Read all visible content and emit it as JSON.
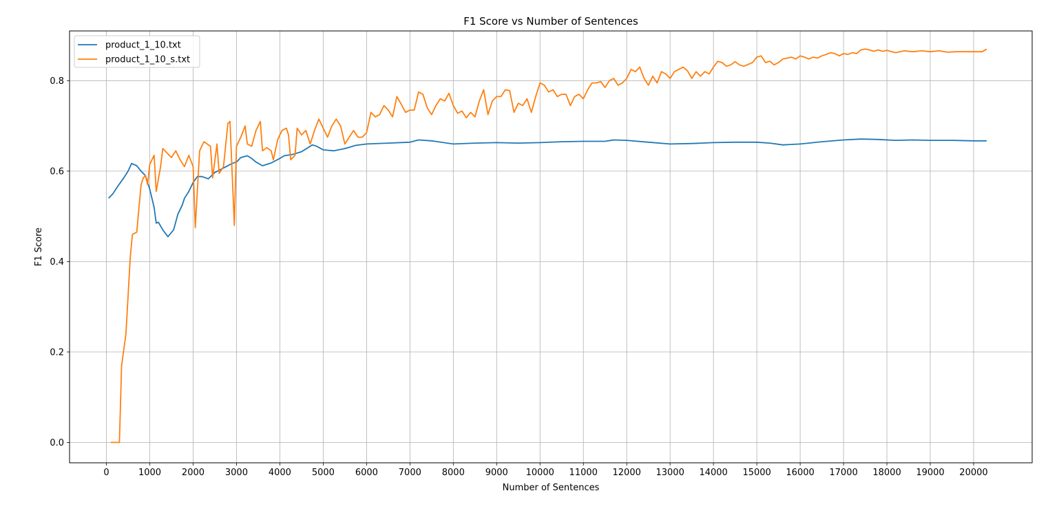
{
  "chart_data": {
    "type": "line",
    "title": "F1 Score vs Number of Sentences",
    "xlabel": "Number of Sentences",
    "ylabel": "F1 Score",
    "xlim": [
      -850,
      21350
    ],
    "ylim": [
      -0.045,
      0.91
    ],
    "xticks": [
      0,
      1000,
      2000,
      3000,
      4000,
      5000,
      6000,
      7000,
      8000,
      9000,
      10000,
      11000,
      12000,
      13000,
      14000,
      15000,
      16000,
      17000,
      18000,
      19000,
      20000
    ],
    "yticks": [
      0.0,
      0.2,
      0.4,
      0.6,
      0.8
    ],
    "ytick_labels": [
      "0.0",
      "0.2",
      "0.4",
      "0.6",
      "0.8"
    ],
    "grid": true,
    "legend": "top-left",
    "series": [
      {
        "name": "product_1_10.txt",
        "color": "#1f77b4",
        "points": [
          [
            50,
            0.54
          ],
          [
            150,
            0.55
          ],
          [
            250,
            0.565
          ],
          [
            400,
            0.585
          ],
          [
            500,
            0.6
          ],
          [
            580,
            0.617
          ],
          [
            700,
            0.612
          ],
          [
            800,
            0.6
          ],
          [
            900,
            0.59
          ],
          [
            1000,
            0.56
          ],
          [
            1100,
            0.52
          ],
          [
            1150,
            0.485
          ],
          [
            1200,
            0.487
          ],
          [
            1300,
            0.47
          ],
          [
            1420,
            0.455
          ],
          [
            1550,
            0.47
          ],
          [
            1650,
            0.505
          ],
          [
            1750,
            0.525
          ],
          [
            1800,
            0.54
          ],
          [
            1900,
            0.555
          ],
          [
            2000,
            0.575
          ],
          [
            2100,
            0.588
          ],
          [
            2200,
            0.588
          ],
          [
            2350,
            0.583
          ],
          [
            2500,
            0.597
          ],
          [
            2700,
            0.607
          ],
          [
            2900,
            0.617
          ],
          [
            3000,
            0.62
          ],
          [
            3100,
            0.63
          ],
          [
            3250,
            0.634
          ],
          [
            3350,
            0.628
          ],
          [
            3450,
            0.62
          ],
          [
            3600,
            0.612
          ],
          [
            3800,
            0.618
          ],
          [
            4000,
            0.628
          ],
          [
            4100,
            0.634
          ],
          [
            4300,
            0.637
          ],
          [
            4500,
            0.643
          ],
          [
            4650,
            0.652
          ],
          [
            4750,
            0.658
          ],
          [
            4850,
            0.655
          ],
          [
            5000,
            0.647
          ],
          [
            5250,
            0.645
          ],
          [
            5500,
            0.65
          ],
          [
            5750,
            0.657
          ],
          [
            6000,
            0.66
          ],
          [
            6500,
            0.662
          ],
          [
            7000,
            0.664
          ],
          [
            7200,
            0.669
          ],
          [
            7500,
            0.667
          ],
          [
            8000,
            0.66
          ],
          [
            8500,
            0.662
          ],
          [
            9000,
            0.663
          ],
          [
            9500,
            0.662
          ],
          [
            10000,
            0.663
          ],
          [
            10500,
            0.665
          ],
          [
            11000,
            0.666
          ],
          [
            11500,
            0.666
          ],
          [
            11700,
            0.669
          ],
          [
            12000,
            0.668
          ],
          [
            12500,
            0.664
          ],
          [
            13000,
            0.66
          ],
          [
            13500,
            0.661
          ],
          [
            14000,
            0.663
          ],
          [
            14500,
            0.664
          ],
          [
            15000,
            0.664
          ],
          [
            15300,
            0.662
          ],
          [
            15600,
            0.658
          ],
          [
            16000,
            0.66
          ],
          [
            16500,
            0.665
          ],
          [
            17000,
            0.669
          ],
          [
            17400,
            0.671
          ],
          [
            17800,
            0.67
          ],
          [
            18200,
            0.668
          ],
          [
            18600,
            0.669
          ],
          [
            19000,
            0.668
          ],
          [
            19500,
            0.668
          ],
          [
            20000,
            0.667
          ],
          [
            20300,
            0.667
          ]
        ]
      },
      {
        "name": "product_1_10_s.txt",
        "color": "#ff7f0e",
        "points": [
          [
            100,
            0.0
          ],
          [
            200,
            0.0
          ],
          [
            300,
            0.0
          ],
          [
            350,
            0.17
          ],
          [
            450,
            0.24
          ],
          [
            550,
            0.41
          ],
          [
            600,
            0.46
          ],
          [
            700,
            0.465
          ],
          [
            800,
            0.57
          ],
          [
            850,
            0.585
          ],
          [
            900,
            0.59
          ],
          [
            950,
            0.57
          ],
          [
            1000,
            0.615
          ],
          [
            1100,
            0.635
          ],
          [
            1150,
            0.555
          ],
          [
            1250,
            0.61
          ],
          [
            1300,
            0.65
          ],
          [
            1400,
            0.64
          ],
          [
            1500,
            0.63
          ],
          [
            1600,
            0.645
          ],
          [
            1700,
            0.625
          ],
          [
            1800,
            0.61
          ],
          [
            1900,
            0.635
          ],
          [
            2000,
            0.61
          ],
          [
            2050,
            0.475
          ],
          [
            2150,
            0.645
          ],
          [
            2250,
            0.665
          ],
          [
            2400,
            0.655
          ],
          [
            2450,
            0.585
          ],
          [
            2550,
            0.66
          ],
          [
            2600,
            0.595
          ],
          [
            2700,
            0.61
          ],
          [
            2800,
            0.705
          ],
          [
            2850,
            0.71
          ],
          [
            2950,
            0.48
          ],
          [
            3000,
            0.655
          ],
          [
            3100,
            0.675
          ],
          [
            3200,
            0.7
          ],
          [
            3250,
            0.66
          ],
          [
            3350,
            0.655
          ],
          [
            3450,
            0.69
          ],
          [
            3550,
            0.71
          ],
          [
            3600,
            0.645
          ],
          [
            3700,
            0.652
          ],
          [
            3800,
            0.645
          ],
          [
            3850,
            0.625
          ],
          [
            3950,
            0.67
          ],
          [
            4050,
            0.69
          ],
          [
            4150,
            0.695
          ],
          [
            4200,
            0.68
          ],
          [
            4250,
            0.625
          ],
          [
            4350,
            0.635
          ],
          [
            4400,
            0.695
          ],
          [
            4500,
            0.68
          ],
          [
            4600,
            0.69
          ],
          [
            4700,
            0.66
          ],
          [
            4800,
            0.69
          ],
          [
            4900,
            0.715
          ],
          [
            5000,
            0.695
          ],
          [
            5100,
            0.675
          ],
          [
            5200,
            0.7
          ],
          [
            5300,
            0.715
          ],
          [
            5400,
            0.7
          ],
          [
            5500,
            0.66
          ],
          [
            5600,
            0.675
          ],
          [
            5700,
            0.69
          ],
          [
            5800,
            0.675
          ],
          [
            5900,
            0.675
          ],
          [
            6000,
            0.685
          ],
          [
            6100,
            0.73
          ],
          [
            6200,
            0.72
          ],
          [
            6300,
            0.725
          ],
          [
            6400,
            0.745
          ],
          [
            6500,
            0.735
          ],
          [
            6600,
            0.72
          ],
          [
            6700,
            0.765
          ],
          [
            6800,
            0.748
          ],
          [
            6900,
            0.73
          ],
          [
            7000,
            0.735
          ],
          [
            7100,
            0.735
          ],
          [
            7200,
            0.775
          ],
          [
            7300,
            0.77
          ],
          [
            7400,
            0.74
          ],
          [
            7500,
            0.725
          ],
          [
            7600,
            0.745
          ],
          [
            7700,
            0.76
          ],
          [
            7800,
            0.755
          ],
          [
            7900,
            0.772
          ],
          [
            8000,
            0.745
          ],
          [
            8100,
            0.728
          ],
          [
            8200,
            0.733
          ],
          [
            8300,
            0.718
          ],
          [
            8400,
            0.73
          ],
          [
            8500,
            0.72
          ],
          [
            8600,
            0.755
          ],
          [
            8700,
            0.78
          ],
          [
            8800,
            0.725
          ],
          [
            8900,
            0.755
          ],
          [
            9000,
            0.765
          ],
          [
            9100,
            0.765
          ],
          [
            9200,
            0.78
          ],
          [
            9300,
            0.778
          ],
          [
            9400,
            0.73
          ],
          [
            9500,
            0.75
          ],
          [
            9600,
            0.745
          ],
          [
            9700,
            0.76
          ],
          [
            9800,
            0.73
          ],
          [
            9900,
            0.765
          ],
          [
            10000,
            0.795
          ],
          [
            10100,
            0.79
          ],
          [
            10200,
            0.775
          ],
          [
            10300,
            0.78
          ],
          [
            10400,
            0.765
          ],
          [
            10500,
            0.77
          ],
          [
            10600,
            0.77
          ],
          [
            10700,
            0.745
          ],
          [
            10800,
            0.765
          ],
          [
            10900,
            0.77
          ],
          [
            11000,
            0.76
          ],
          [
            11100,
            0.78
          ],
          [
            11200,
            0.795
          ],
          [
            11300,
            0.795
          ],
          [
            11400,
            0.798
          ],
          [
            11500,
            0.785
          ],
          [
            11600,
            0.8
          ],
          [
            11700,
            0.805
          ],
          [
            11800,
            0.79
          ],
          [
            11900,
            0.795
          ],
          [
            12000,
            0.805
          ],
          [
            12100,
            0.825
          ],
          [
            12200,
            0.82
          ],
          [
            12300,
            0.83
          ],
          [
            12400,
            0.805
          ],
          [
            12500,
            0.79
          ],
          [
            12600,
            0.81
          ],
          [
            12700,
            0.795
          ],
          [
            12800,
            0.82
          ],
          [
            12900,
            0.815
          ],
          [
            13000,
            0.805
          ],
          [
            13100,
            0.82
          ],
          [
            13200,
            0.825
          ],
          [
            13300,
            0.83
          ],
          [
            13400,
            0.822
          ],
          [
            13500,
            0.805
          ],
          [
            13600,
            0.82
          ],
          [
            13700,
            0.81
          ],
          [
            13800,
            0.82
          ],
          [
            13900,
            0.815
          ],
          [
            14000,
            0.83
          ],
          [
            14100,
            0.843
          ],
          [
            14200,
            0.84
          ],
          [
            14300,
            0.832
          ],
          [
            14400,
            0.835
          ],
          [
            14500,
            0.842
          ],
          [
            14600,
            0.835
          ],
          [
            14700,
            0.832
          ],
          [
            14800,
            0.836
          ],
          [
            14900,
            0.84
          ],
          [
            15000,
            0.852
          ],
          [
            15100,
            0.855
          ],
          [
            15200,
            0.84
          ],
          [
            15300,
            0.843
          ],
          [
            15400,
            0.835
          ],
          [
            15500,
            0.84
          ],
          [
            15600,
            0.848
          ],
          [
            15700,
            0.85
          ],
          [
            15800,
            0.852
          ],
          [
            15900,
            0.848
          ],
          [
            16000,
            0.855
          ],
          [
            16100,
            0.852
          ],
          [
            16200,
            0.848
          ],
          [
            16300,
            0.852
          ],
          [
            16400,
            0.85
          ],
          [
            16500,
            0.855
          ],
          [
            16600,
            0.858
          ],
          [
            16700,
            0.862
          ],
          [
            16800,
            0.86
          ],
          [
            16900,
            0.855
          ],
          [
            17000,
            0.86
          ],
          [
            17100,
            0.858
          ],
          [
            17200,
            0.862
          ],
          [
            17300,
            0.86
          ],
          [
            17400,
            0.868
          ],
          [
            17500,
            0.87
          ],
          [
            17600,
            0.868
          ],
          [
            17700,
            0.865
          ],
          [
            17800,
            0.868
          ],
          [
            17900,
            0.865
          ],
          [
            18000,
            0.867
          ],
          [
            18200,
            0.862
          ],
          [
            18400,
            0.866
          ],
          [
            18600,
            0.864
          ],
          [
            18800,
            0.866
          ],
          [
            19000,
            0.864
          ],
          [
            19200,
            0.866
          ],
          [
            19400,
            0.863
          ],
          [
            19600,
            0.864
          ],
          [
            19800,
            0.864
          ],
          [
            20000,
            0.864
          ],
          [
            20200,
            0.864
          ],
          [
            20300,
            0.87
          ]
        ]
      }
    ]
  }
}
